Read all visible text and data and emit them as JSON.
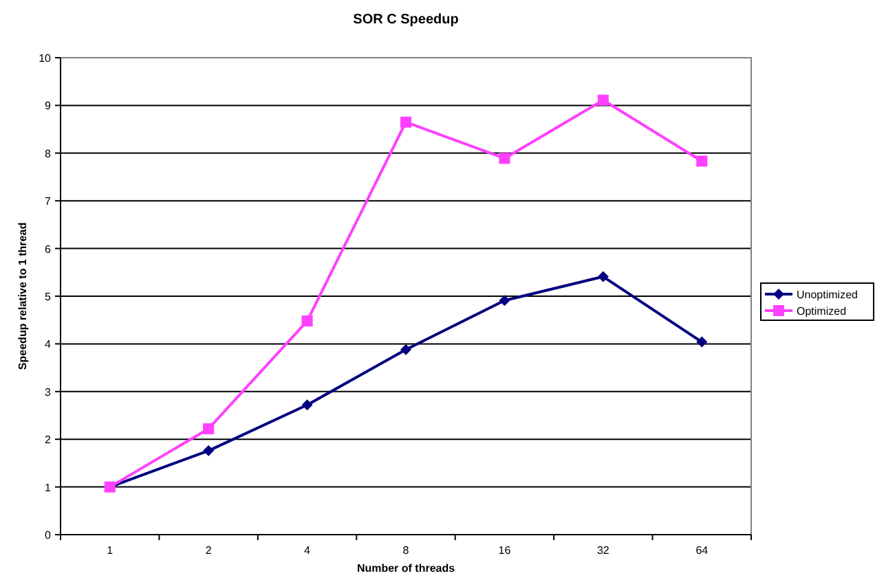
{
  "chart_data": {
    "type": "line",
    "title": "SOR C Speedup",
    "xlabel": "Number of threads",
    "ylabel": "Speedup relative to 1 thread",
    "categories": [
      "1",
      "2",
      "4",
      "8",
      "16",
      "32",
      "64"
    ],
    "series": [
      {
        "name": "Unoptimized",
        "color": "#000080",
        "marker": "diamond",
        "values": [
          1,
          1.76,
          2.72,
          3.88,
          4.91,
          5.41,
          4.04
        ]
      },
      {
        "name": "Optimized",
        "color": "#ff40ff",
        "marker": "square",
        "values": [
          1,
          2.22,
          4.48,
          8.65,
          7.89,
          9.11,
          7.83
        ]
      }
    ],
    "ylim": [
      0,
      10
    ],
    "yticks": [
      0,
      1,
      2,
      3,
      4,
      5,
      6,
      7,
      8,
      9,
      10
    ],
    "grid": "y",
    "legend": "right"
  }
}
